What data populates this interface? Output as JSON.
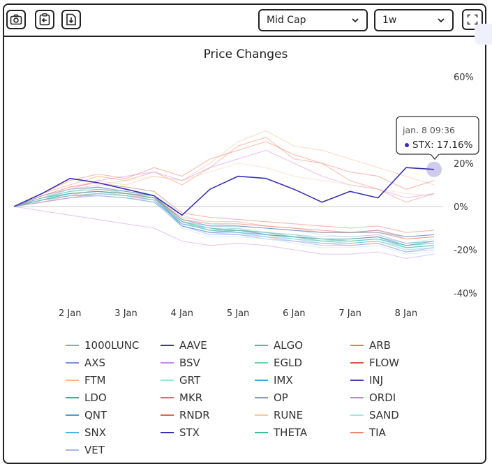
{
  "toolbar": {
    "icons": [
      "camera-icon",
      "clipboard-copy-icon",
      "download-file-icon",
      "fullscreen-icon"
    ],
    "market_cap_select": "Mid Cap",
    "timeframe_select": "1w"
  },
  "tooltip": {
    "time": "jan. 8 09:36",
    "series": "STX",
    "value": "17.16%"
  },
  "chart_data": {
    "type": "line",
    "title": "Price Changes",
    "xlabel": "",
    "ylabel": "",
    "x_ticks": [
      "2 Jan",
      "3 Jan",
      "4 Jan",
      "5 Jan",
      "6 Jan",
      "7 Jan",
      "8 Jan"
    ],
    "y_ticks": [
      "60%",
      "20%",
      "0%",
      "-20%",
      "-40%"
    ],
    "ylim": [
      -40,
      60
    ],
    "y_axis_position": "right",
    "legend_position": "bottom",
    "highlighted_series": "STX",
    "x": [
      "1 Jan 00:00",
      "1 Jan 12:00",
      "2 Jan 00:00",
      "2 Jan 12:00",
      "3 Jan 00:00",
      "3 Jan 12:00",
      "4 Jan 00:00",
      "4 Jan 12:00",
      "5 Jan 00:00",
      "5 Jan 12:00",
      "6 Jan 00:00",
      "6 Jan 12:00",
      "7 Jan 00:00",
      "7 Jan 12:00",
      "8 Jan 00:00",
      "8 Jan 09:36"
    ],
    "series": [
      {
        "name": "1000LUNC",
        "color": "#5bb8e0",
        "values": [
          0,
          4,
          7,
          9,
          6,
          4,
          -8,
          -11,
          -10,
          -13,
          -14,
          -16,
          -15,
          -14,
          -19,
          -18
        ]
      },
      {
        "name": "AAVE",
        "color": "#3d33a8",
        "values": [
          0,
          5,
          8,
          9,
          7,
          5,
          -9,
          -12,
          -11,
          -13,
          -14,
          -15,
          -15,
          -14,
          -18,
          -16
        ]
      },
      {
        "name": "ALGO",
        "color": "#41c49a",
        "values": [
          0,
          4,
          6,
          7,
          5,
          3,
          -8,
          -10,
          -12,
          -13,
          -15,
          -16,
          -17,
          -16,
          -19,
          -18
        ]
      },
      {
        "name": "ARB",
        "color": "#f07a5b",
        "values": [
          0,
          6,
          10,
          14,
          12,
          16,
          10,
          18,
          28,
          32,
          22,
          20,
          12,
          8,
          2,
          6
        ]
      },
      {
        "name": "AXS",
        "color": "#7f8fd8",
        "values": [
          0,
          3,
          5,
          6,
          5,
          3,
          -9,
          -13,
          -13,
          -15,
          -16,
          -18,
          -18,
          -17,
          -21,
          -19
        ]
      },
      {
        "name": "BSV",
        "color": "#c985ee",
        "values": [
          0,
          -2,
          -4,
          -6,
          -8,
          -10,
          -16,
          -18,
          -17,
          -18,
          -20,
          -22,
          -22,
          -21,
          -24,
          -22
        ]
      },
      {
        "name": "EGLD",
        "color": "#5ed6a8",
        "values": [
          0,
          4,
          6,
          7,
          6,
          4,
          -7,
          -10,
          -11,
          -12,
          -14,
          -15,
          -16,
          -15,
          -18,
          -17
        ]
      },
      {
        "name": "FLOW",
        "color": "#e0533a",
        "values": [
          0,
          2,
          4,
          6,
          5,
          4,
          -6,
          -8,
          -8,
          -9,
          -10,
          -11,
          -12,
          -12,
          -15,
          -14
        ]
      },
      {
        "name": "FTM",
        "color": "#f5b58d",
        "values": [
          0,
          5,
          9,
          12,
          10,
          14,
          12,
          20,
          30,
          35,
          28,
          26,
          22,
          18,
          14,
          10
        ]
      },
      {
        "name": "GRT",
        "color": "#9ce0d6",
        "values": [
          0,
          5,
          8,
          10,
          9,
          7,
          -4,
          -8,
          -9,
          -10,
          -11,
          -13,
          -14,
          -13,
          -17,
          -15
        ]
      },
      {
        "name": "IMX",
        "color": "#3aa8dc",
        "values": [
          0,
          3,
          5,
          6,
          5,
          3,
          -8,
          -11,
          -12,
          -13,
          -14,
          -15,
          -16,
          -15,
          -18,
          -17
        ]
      },
      {
        "name": "INJ",
        "color": "#4a3cae",
        "values": [
          0,
          3,
          6,
          7,
          6,
          5,
          -6,
          -9,
          -9,
          -10,
          -11,
          -12,
          -12,
          -11,
          -14,
          -13
        ]
      },
      {
        "name": "LDO",
        "color": "#30b787",
        "values": [
          0,
          4,
          7,
          8,
          7,
          5,
          -7,
          -10,
          -11,
          -12,
          -13,
          -15,
          -15,
          -14,
          -17,
          -16
        ]
      },
      {
        "name": "MKR",
        "color": "#f06a52",
        "values": [
          0,
          6,
          12,
          15,
          13,
          18,
          14,
          22,
          26,
          30,
          24,
          20,
          16,
          14,
          8,
          12
        ]
      },
      {
        "name": "OP",
        "color": "#8595e0",
        "values": [
          0,
          2,
          4,
          5,
          4,
          2,
          -9,
          -12,
          -13,
          -14,
          -16,
          -17,
          -18,
          -17,
          -21,
          -20
        ]
      },
      {
        "name": "ORDI",
        "color": "#cf7aed",
        "values": [
          0,
          4,
          8,
          12,
          14,
          16,
          12,
          18,
          22,
          26,
          20,
          14,
          10,
          8,
          4,
          6
        ]
      },
      {
        "name": "QNT",
        "color": "#4f9ed0",
        "values": [
          0,
          3,
          5,
          5,
          4,
          2,
          -7,
          -9,
          -9,
          -10,
          -11,
          -12,
          -12,
          -12,
          -14,
          -13
        ]
      },
      {
        "name": "RNDR",
        "color": "#e8624a",
        "values": [
          0,
          5,
          9,
          11,
          9,
          7,
          -3,
          -5,
          -6,
          -7,
          -8,
          -9,
          -10,
          -9,
          -12,
          -11
        ]
      },
      {
        "name": "RUNE",
        "color": "#f8cba0",
        "values": [
          0,
          4,
          8,
          10,
          12,
          14,
          12,
          16,
          20,
          18,
          14,
          12,
          10,
          8,
          6,
          5
        ]
      },
      {
        "name": "SAND",
        "color": "#a7e5e0",
        "values": [
          0,
          3,
          5,
          6,
          5,
          3,
          -10,
          -14,
          -14,
          -15,
          -17,
          -19,
          -19,
          -18,
          -22,
          -21
        ]
      },
      {
        "name": "SNX",
        "color": "#47b3e6",
        "values": [
          0,
          4,
          6,
          7,
          6,
          4,
          -9,
          -12,
          -12,
          -14,
          -15,
          -17,
          -17,
          -16,
          -20,
          -19
        ]
      },
      {
        "name": "STX",
        "color": "#3a2fb0",
        "values": [
          0,
          6,
          13,
          11,
          8,
          5,
          -4,
          8,
          14,
          13,
          8,
          2,
          7,
          4,
          18,
          17.16
        ]
      },
      {
        "name": "THETA",
        "color": "#35c28e",
        "values": [
          0,
          3,
          6,
          7,
          6,
          4,
          -7,
          -11,
          -11,
          -12,
          -14,
          -16,
          -16,
          -15,
          -19,
          -18
        ]
      },
      {
        "name": "TIA",
        "color": "#f2846a",
        "values": [
          0,
          2,
          5,
          8,
          6,
          4,
          -5,
          -7,
          -7,
          -9,
          -10,
          -12,
          -12,
          -11,
          -15,
          -14
        ]
      },
      {
        "name": "VET",
        "color": "#aab2ea",
        "values": [
          0,
          2,
          4,
          5,
          4,
          3,
          -8,
          -10,
          -10,
          -12,
          -13,
          -14,
          -14,
          -13,
          -17,
          -16
        ]
      }
    ]
  }
}
